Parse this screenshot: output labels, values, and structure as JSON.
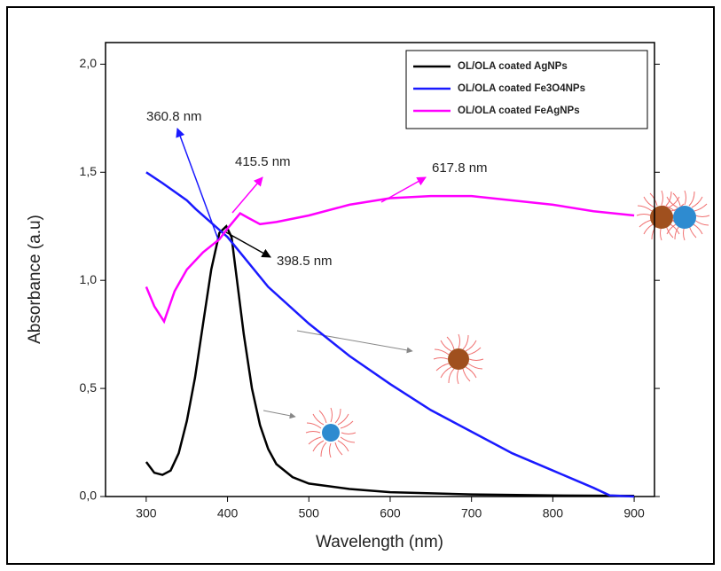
{
  "chart_data": {
    "type": "line",
    "x_label": "Wavelength (nm)",
    "y_label": "Absorbance (a.u)",
    "xlim": [
      250,
      925
    ],
    "ylim": [
      0,
      2.1
    ],
    "xticks": [
      300,
      400,
      500,
      600,
      700,
      800,
      900
    ],
    "yticks": [
      {
        "value": 0,
        "label": "0,0"
      },
      {
        "value": 0.5,
        "label": "0,5"
      },
      {
        "value": 1,
        "label": "1,0"
      },
      {
        "value": 1.5,
        "label": "1,5"
      },
      {
        "value": 2,
        "label": "2,0"
      }
    ],
    "legend": "upper right",
    "series": [
      {
        "name": "OL/OLA coated AgNPs",
        "color": "#000000",
        "x": [
          300,
          310,
          320,
          330,
          340,
          350,
          360,
          370,
          380,
          390,
          398.5,
          405,
          410,
          420,
          430,
          440,
          450,
          460,
          480,
          500,
          550,
          600,
          700,
          800,
          900
        ],
        "values": [
          0.16,
          0.11,
          0.1,
          0.12,
          0.2,
          0.35,
          0.55,
          0.8,
          1.05,
          1.22,
          1.25,
          1.2,
          1.05,
          0.75,
          0.5,
          0.33,
          0.22,
          0.15,
          0.09,
          0.06,
          0.035,
          0.02,
          0.01,
          0.005,
          0.003
        ]
      },
      {
        "name": "OL/OLA coated Fe3O4NPs",
        "color": "#1a1aff",
        "x": [
          300,
          320,
          350,
          360.8,
          400,
          450,
          500,
          550,
          600,
          650,
          700,
          750,
          800,
          850,
          870,
          900
        ],
        "values": [
          1.5,
          1.45,
          1.37,
          1.33,
          1.2,
          0.97,
          0.8,
          0.65,
          0.52,
          0.4,
          0.3,
          0.2,
          0.12,
          0.04,
          0.005,
          0
        ]
      },
      {
        "name": "OL/OLA coated FeAgNPs",
        "color": "#ff00ff",
        "x": [
          300,
          310,
          322,
          335,
          350,
          370,
          390,
          400,
          415.5,
          425,
          440,
          460,
          500,
          550,
          600,
          650,
          700,
          750,
          800,
          850,
          900
        ],
        "values": [
          0.97,
          0.88,
          0.81,
          0.95,
          1.05,
          1.13,
          1.19,
          1.24,
          1.31,
          1.29,
          1.26,
          1.27,
          1.3,
          1.35,
          1.38,
          1.39,
          1.39,
          1.37,
          1.35,
          1.32,
          1.3
        ]
      }
    ],
    "annotations": [
      {
        "text": "360.8 nm",
        "color": "#333333",
        "arrow_color": "#1a1aff"
      },
      {
        "text": "415.5 nm",
        "color": "#ff00ff",
        "arrow_color": "#ff00ff"
      },
      {
        "text": "617.8 nm",
        "color": "#ff55ff",
        "arrow_color": "#ff00ff"
      },
      {
        "text": "398.5 nm",
        "color": "#333333",
        "arrow_color": "#000000"
      }
    ]
  }
}
